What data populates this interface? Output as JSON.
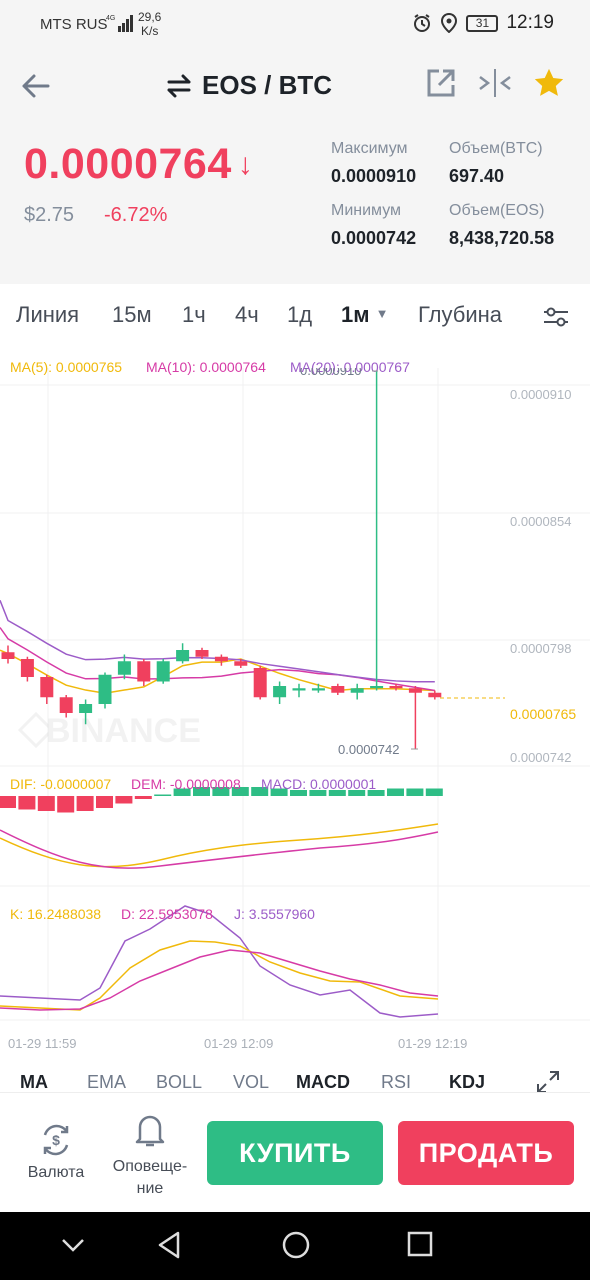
{
  "status": {
    "carrier": "MTS RUS",
    "net_speed": "29,6",
    "net_unit": "K/s",
    "battery": "31",
    "time": "12:19"
  },
  "header": {
    "pair": "EOS / BTC",
    "price": "0.0000764",
    "price_usd": "$2.75",
    "change": "-6.72%",
    "stats": {
      "high_label": "Максимум",
      "high_value": "0.0000910",
      "vol_btc_label": "Объем(BTC)",
      "vol_btc_value": "697.40",
      "low_label": "Минимум",
      "low_value": "0.0000742",
      "vol_eos_label": "Объем(EOS)",
      "vol_eos_value": "8,438,720.58"
    }
  },
  "tabs": {
    "line": "Линия",
    "m15": "15м",
    "h1": "1ч",
    "h4": "4ч",
    "d1": "1д",
    "m1": "1м",
    "depth": "Глубина"
  },
  "ma_legend": {
    "ma5": "MA(5): 0.0000765",
    "ma10": "MA(10): 0.0000764",
    "ma20": "MA(20): 0.0000767"
  },
  "y_axis": {
    "t1": "0.0000910",
    "t2": "0.0000854",
    "t3": "0.0000798",
    "t4": "0.0000742",
    "current": "0.0000765"
  },
  "annotations": {
    "max": "0.0000910",
    "min": "0.0000742"
  },
  "watermark": "BINANCE",
  "macd_legend": {
    "dif": "DIF: -0.0000007",
    "dem": "DEM: -0.0000008",
    "macd": "MACD: 0.0000001"
  },
  "kdj_legend": {
    "k": "K: 16.2488038",
    "d": "D: 22.5953078",
    "j": "J: 3.5557960"
  },
  "time_labels": [
    "01-29 11:59",
    "01-29 12:09",
    "01-29 12:19"
  ],
  "indicators": {
    "ma": "MA",
    "ema": "EMA",
    "boll": "BOLL",
    "vol": "VOL",
    "macd": "MACD",
    "rsi": "RSI",
    "kdj": "KDJ"
  },
  "bottom": {
    "currency": "Валюта",
    "alerts_line1": "Оповеще-",
    "alerts_line2": "ние",
    "buy": "КУПИТЬ",
    "sell": "ПРОДАТЬ"
  },
  "colors": {
    "up": "#2ebd85",
    "down": "#f0405e",
    "ma5": "#f0b90b",
    "ma10": "#d63ba6",
    "ma20": "#9c5cc8"
  },
  "chart_data": {
    "type": "candlestick",
    "candles": [
      {
        "o": 7.85e-05,
        "c": 7.82e-05,
        "h": 7.88e-05,
        "l": 7.8e-05
      },
      {
        "o": 7.82e-05,
        "c": 7.74e-05,
        "h": 7.83e-05,
        "l": 7.72e-05
      },
      {
        "o": 7.74e-05,
        "c": 7.65e-05,
        "h": 7.75e-05,
        "l": 7.62e-05
      },
      {
        "o": 7.65e-05,
        "c": 7.58e-05,
        "h": 7.66e-05,
        "l": 7.56e-05
      },
      {
        "o": 7.58e-05,
        "c": 7.62e-05,
        "h": 7.64e-05,
        "l": 7.53e-05
      },
      {
        "o": 7.62e-05,
        "c": 7.75e-05,
        "h": 7.76e-05,
        "l": 7.6e-05
      },
      {
        "o": 7.75e-05,
        "c": 7.81e-05,
        "h": 7.84e-05,
        "l": 7.73e-05
      },
      {
        "o": 7.81e-05,
        "c": 7.72e-05,
        "h": 7.82e-05,
        "l": 7.7e-05
      },
      {
        "o": 7.72e-05,
        "c": 7.81e-05,
        "h": 7.82e-05,
        "l": 7.71e-05
      },
      {
        "o": 7.81e-05,
        "c": 7.86e-05,
        "h": 7.89e-05,
        "l": 7.8e-05
      },
      {
        "o": 7.86e-05,
        "c": 7.83e-05,
        "h": 7.87e-05,
        "l": 7.82e-05
      },
      {
        "o": 7.83e-05,
        "c": 7.81e-05,
        "h": 7.84e-05,
        "l": 7.79e-05
      },
      {
        "o": 7.81e-05,
        "c": 7.79e-05,
        "h": 7.82e-05,
        "l": 7.78e-05
      },
      {
        "o": 7.78e-05,
        "c": 7.65e-05,
        "h": 7.79e-05,
        "l": 7.64e-05
      },
      {
        "o": 7.65e-05,
        "c": 7.7e-05,
        "h": 7.72e-05,
        "l": 7.62e-05
      },
      {
        "o": 7.68e-05,
        "c": 7.69e-05,
        "h": 7.71e-05,
        "l": 7.65e-05
      },
      {
        "o": 7.68e-05,
        "c": 7.69e-05,
        "h": 7.71e-05,
        "l": 7.67e-05
      },
      {
        "o": 7.7e-05,
        "c": 7.67e-05,
        "h": 7.71e-05,
        "l": 7.66e-05
      },
      {
        "o": 7.67e-05,
        "c": 7.69e-05,
        "h": 7.71e-05,
        "l": 7.64e-05
      },
      {
        "o": 7.69e-05,
        "c": 7.7e-05,
        "h": 9.1e-05,
        "l": 7.68e-05
      },
      {
        "o": 7.7e-05,
        "c": 7.69e-05,
        "h": 7.71e-05,
        "l": 7.68e-05
      },
      {
        "o": 7.69e-05,
        "c": 7.67e-05,
        "h": 7.7e-05,
        "l": 7.42e-05
      },
      {
        "o": 7.67e-05,
        "c": 7.65e-05,
        "h": 7.68e-05,
        "l": 7.64e-05
      }
    ],
    "ylim": [
      7.42e-05,
      9.1e-05
    ]
  }
}
